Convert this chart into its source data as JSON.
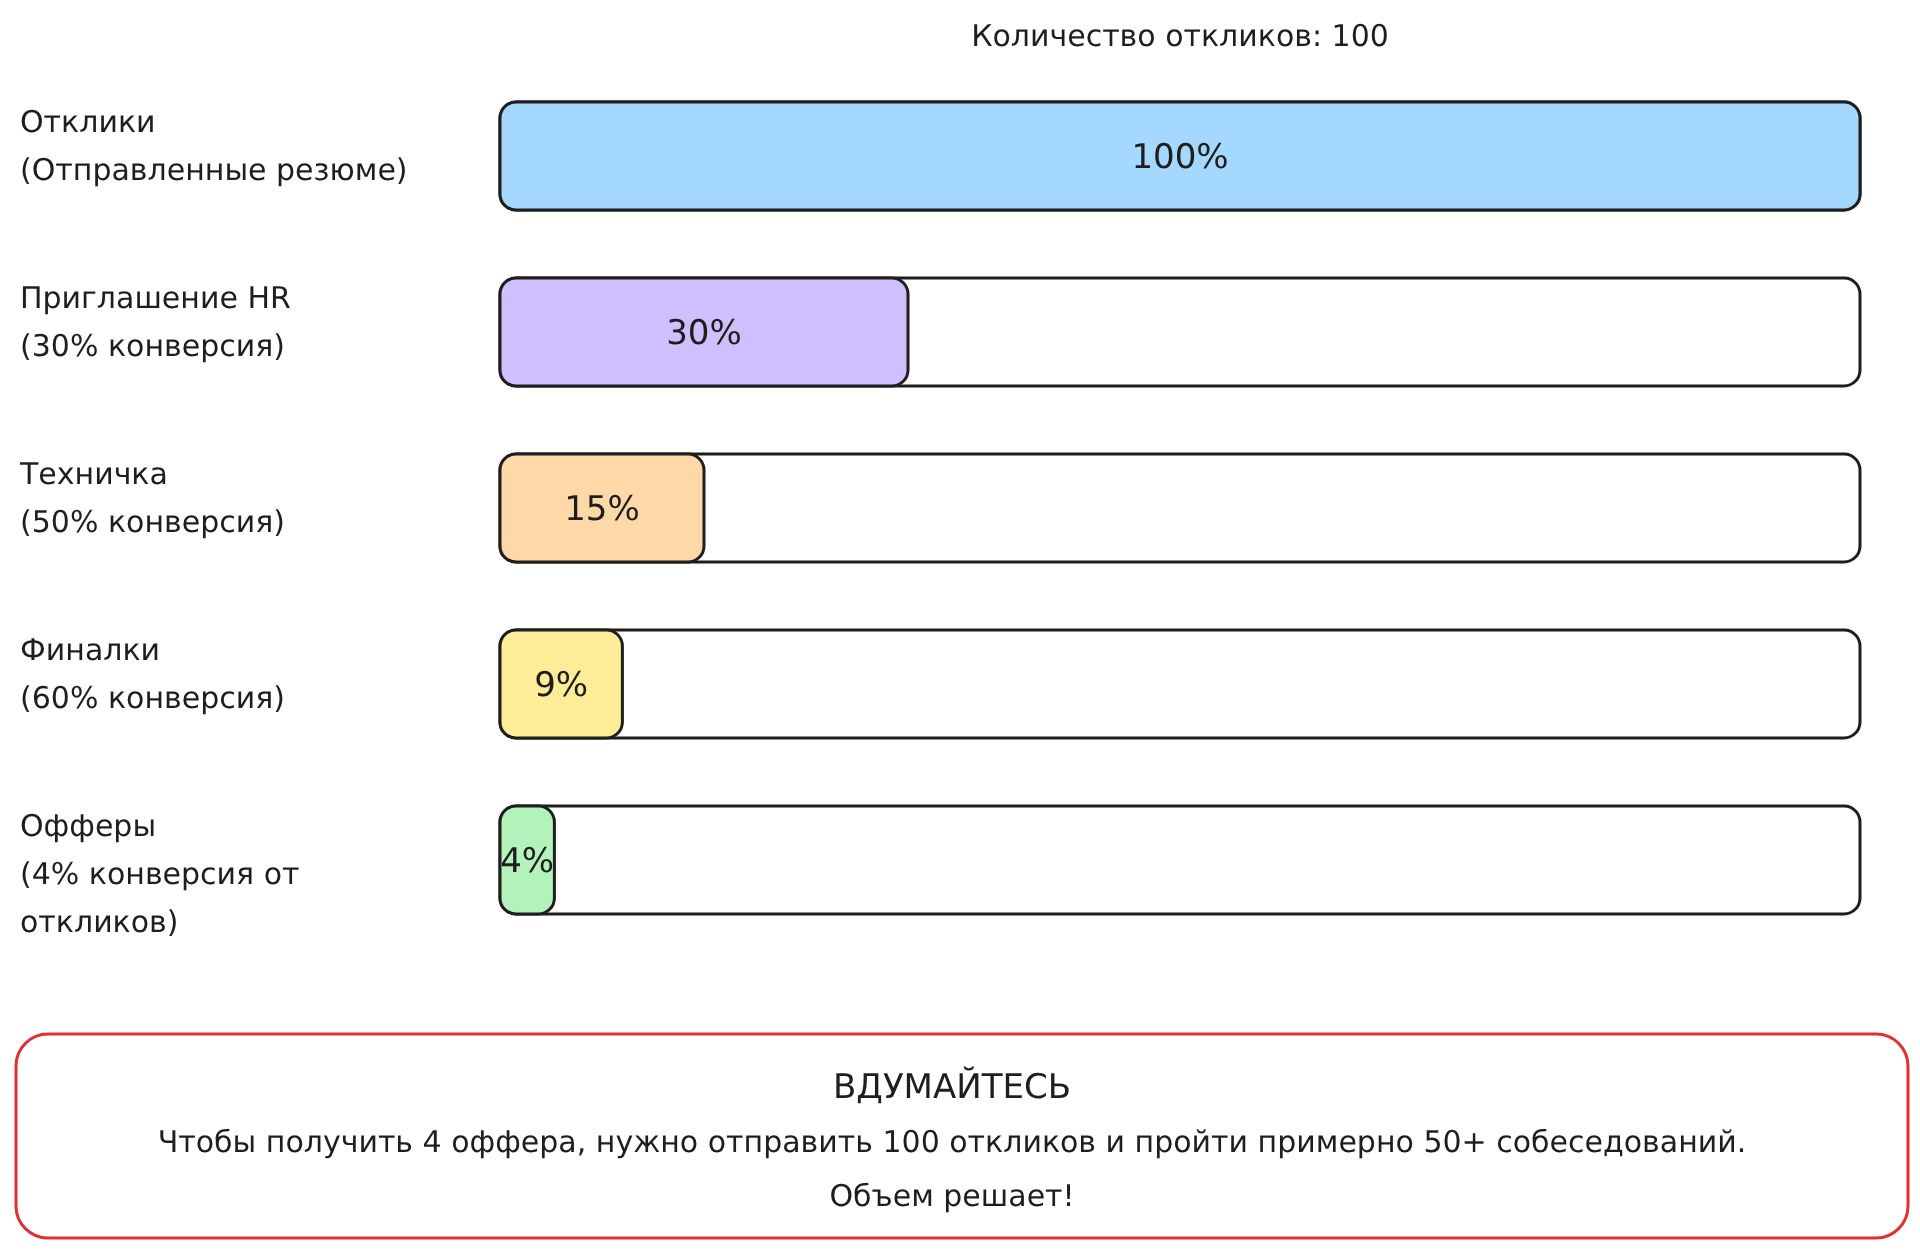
{
  "chart_data": {
    "type": "bar",
    "orientation": "horizontal",
    "title": "Количество откликов: 100",
    "categories": [
      "Отклики\n(Отправленные резюме)",
      "Приглашение HR\n(30% конверсия)",
      "Техничка\n(50% конверсия)",
      "Финалки\n(60% конверсия)",
      "Офферы\n(4% конверсия от\nоткликов)"
    ],
    "values": [
      100,
      30,
      15,
      9,
      4
    ],
    "colors": [
      "#a5d8ff",
      "#d0bfff",
      "#ffd8a8",
      "#ffec99",
      "#b2f2bb"
    ],
    "value_labels": [
      "100%",
      "30%",
      "15%",
      "9%",
      "4%"
    ],
    "xlim": [
      0,
      100
    ],
    "annotations": [
      "ВДУМАЙТЕСЬ",
      "Чтобы получить 4 оффера, нужно отправить 100 откликов и пройти примерно 50+ собеседований.",
      "Объем решает!"
    ]
  }
}
